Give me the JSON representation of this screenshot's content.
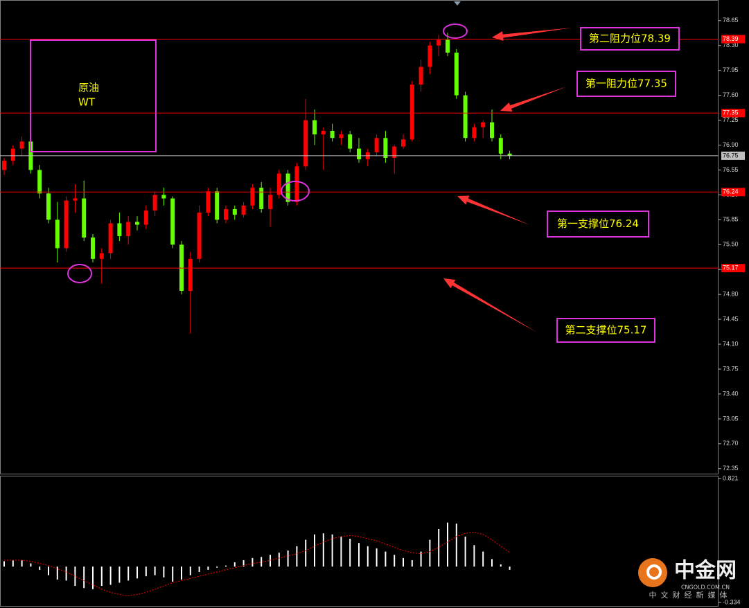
{
  "chart_data": [
    {
      "type": "candlestick",
      "instrument": [
        "原油",
        "WT"
      ],
      "up_color": "#ff0000",
      "down_color": "#66ff00",
      "open": [
        76.55,
        76.68,
        76.85,
        76.95,
        76.55,
        76.22,
        75.85,
        75.45,
        76.12,
        76.15,
        75.6,
        75.3,
        75.38,
        75.8,
        75.62,
        75.82,
        75.78,
        75.98,
        76.2,
        76.15,
        75.5,
        74.85,
        75.3,
        75.95,
        76.25,
        75.85,
        76.0,
        75.92,
        76.05,
        76.3,
        76.0,
        76.2,
        76.5,
        76.1,
        76.6,
        77.25,
        77.05,
        77.1,
        77.0,
        77.05,
        76.85,
        76.7,
        76.8,
        77.0,
        76.72,
        76.88,
        76.98,
        77.75,
        78.0,
        78.3,
        78.38,
        78.2,
        77.6,
        77.0,
        77.15,
        77.22,
        77.0,
        76.78
      ],
      "high": [
        76.72,
        76.9,
        77.02,
        77.0,
        76.62,
        76.3,
        76.1,
        76.18,
        76.35,
        76.4,
        75.65,
        75.45,
        75.85,
        75.95,
        75.9,
        75.9,
        76.05,
        76.25,
        76.3,
        76.18,
        75.55,
        75.4,
        76.05,
        76.3,
        76.3,
        76.05,
        76.05,
        76.1,
        76.35,
        76.38,
        76.3,
        76.55,
        76.55,
        76.65,
        77.55,
        77.4,
        77.15,
        77.2,
        77.1,
        77.1,
        77.0,
        76.85,
        77.05,
        77.1,
        76.9,
        77.05,
        77.8,
        78.1,
        78.35,
        78.45,
        78.48,
        78.25,
        77.65,
        77.2,
        77.25,
        77.4,
        77.05,
        76.82
      ],
      "low": [
        76.48,
        76.62,
        76.75,
        76.5,
        76.15,
        75.8,
        75.25,
        75.4,
        75.95,
        75.55,
        75.25,
        74.95,
        75.3,
        75.55,
        75.5,
        75.7,
        75.72,
        75.9,
        76.05,
        75.45,
        74.8,
        74.25,
        75.25,
        75.9,
        75.8,
        75.8,
        75.85,
        75.88,
        76.0,
        75.95,
        75.75,
        76.15,
        76.05,
        76.05,
        76.55,
        76.9,
        76.55,
        76.95,
        76.9,
        76.8,
        76.65,
        76.6,
        76.75,
        76.65,
        76.5,
        76.85,
        76.95,
        77.65,
        77.9,
        78.15,
        78.15,
        77.55,
        76.95,
        76.95,
        77.0,
        76.95,
        76.7,
        76.7
      ],
      "close": [
        76.68,
        76.85,
        76.95,
        76.55,
        76.22,
        75.85,
        75.45,
        76.12,
        76.15,
        75.6,
        75.3,
        75.38,
        75.8,
        75.62,
        75.82,
        75.78,
        75.98,
        76.2,
        76.15,
        75.5,
        74.85,
        75.3,
        75.95,
        76.25,
        75.85,
        76.0,
        75.92,
        76.05,
        76.3,
        76.0,
        76.2,
        76.5,
        76.1,
        76.6,
        77.25,
        77.05,
        77.1,
        77.0,
        77.05,
        76.85,
        76.7,
        76.8,
        77.0,
        76.72,
        76.88,
        76.98,
        77.75,
        78.0,
        78.3,
        78.38,
        78.2,
        77.6,
        77.0,
        77.15,
        77.22,
        77.0,
        76.78,
        76.75
      ],
      "ylim": [
        72.27,
        78.94
      ],
      "yticks": [
        78.65,
        {
          "value": 78.3,
          "label": "78.30"
        },
        77.95,
        {
          "value": 77.6,
          "label": "77.60"
        },
        77.25,
        {
          "value": 76.9,
          "label": "76.90"
        },
        76.55,
        {
          "value": 76.2,
          "label": "76.20"
        },
        75.85,
        {
          "value": 75.5,
          "label": "75.50"
        },
        75.15,
        {
          "value": 74.8,
          "label": "74.80"
        },
        74.45,
        {
          "value": 74.1,
          "label": "74.10"
        },
        73.75,
        {
          "value": 73.4,
          "label": "73.40"
        },
        73.05,
        {
          "value": 72.7,
          "label": "72.70"
        },
        72.35
      ],
      "price_lines": [
        {
          "value": 78.39,
          "color": "#ff0000"
        },
        {
          "value": 77.35,
          "color": "#ff0000"
        },
        {
          "value": 76.24,
          "color": "#ff0000"
        },
        {
          "value": 75.17,
          "color": "#ff0000"
        },
        {
          "value": 76.75,
          "color": "#c0c0c0"
        }
      ],
      "annotations": [
        "第二阻力位78.39",
        "第一阻力位77.35",
        "第一支撑位76.24",
        "第二支撑位75.17"
      ]
    },
    {
      "type": "macd",
      "histogram": {
        "color": "#ffffff",
        "values": [
          0.05,
          0.06,
          0.06,
          0.03,
          -0.03,
          -0.08,
          -0.12,
          -0.13,
          -0.18,
          -0.2,
          -0.21,
          -0.18,
          -0.17,
          -0.15,
          -0.13,
          -0.11,
          -0.09,
          -0.08,
          -0.1,
          -0.14,
          -0.12,
          -0.08,
          -0.05,
          -0.03,
          -0.01,
          0.01,
          0.04,
          0.06,
          0.08,
          0.09,
          0.11,
          0.13,
          0.15,
          0.19,
          0.25,
          0.3,
          0.31,
          0.3,
          0.28,
          0.26,
          0.22,
          0.19,
          0.17,
          0.14,
          0.11,
          0.08,
          0.06,
          0.14,
          0.25,
          0.35,
          0.41,
          0.4,
          0.28,
          0.2,
          0.14,
          0.07,
          0.02,
          -0.03
        ]
      },
      "signal": {
        "color": "#ff0000",
        "values": [
          0.06,
          0.06,
          0.06,
          0.05,
          0.03,
          0.01,
          -0.02,
          -0.05,
          -0.09,
          -0.13,
          -0.17,
          -0.21,
          -0.24,
          -0.26,
          -0.27,
          -0.26,
          -0.24,
          -0.21,
          -0.18,
          -0.15,
          -0.13,
          -0.11,
          -0.09,
          -0.07,
          -0.05,
          -0.03,
          -0.01,
          0.01,
          0.03,
          0.04,
          0.06,
          0.08,
          0.1,
          0.12,
          0.15,
          0.19,
          0.23,
          0.26,
          0.28,
          0.29,
          0.28,
          0.26,
          0.24,
          0.21,
          0.18,
          0.15,
          0.13,
          0.12,
          0.14,
          0.18,
          0.23,
          0.28,
          0.31,
          0.32,
          0.3,
          0.25,
          0.19,
          0.13
        ]
      },
      "ylim": [
        -0.334,
        0.821
      ],
      "yticks": [
        0.821,
        -0.334
      ]
    }
  ],
  "watermark": {
    "name": "中金网",
    "site": "CNGOLD.COM.CN",
    "slogan": "中文财经新媒体"
  }
}
